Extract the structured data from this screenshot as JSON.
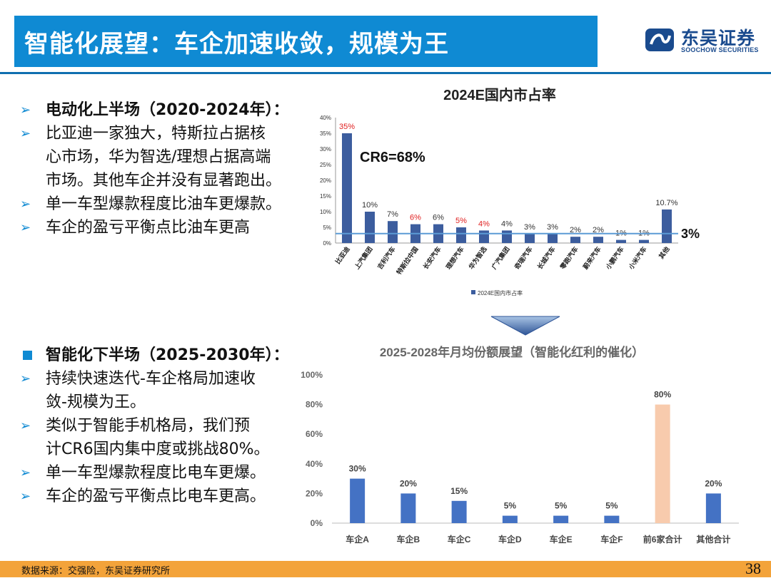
{
  "header": {
    "title": "智能化展望：车企加速收敛，规模为王",
    "logo_cn": "东吴证券",
    "logo_en": "SOOCHOW SECURITIES"
  },
  "upper_bullets": {
    "heading": "电动化上半场（2020-2024年）：",
    "items": [
      [
        "比亚迪一家独大，特斯拉占据核",
        "心市场，华为智选/理想占据高端",
        "市场。其他车企并没有显著跑出。"
      ],
      [
        "单一车型爆款程度比油车更爆款。"
      ],
      [
        "车企的盈亏平衡点比油车更高"
      ]
    ]
  },
  "lower_bullets": {
    "heading": "智能化下半场（2025-2030年）：",
    "items": [
      [
        "持续快速迭代-车企格局加速收",
        "敛-规模为王。"
      ],
      [
        "类似于智能手机格局，我们预",
        "计CR6国内集中度或挑战80%。"
      ],
      [
        "单一车型爆款程度比电车更爆。"
      ],
      [
        "车企的盈亏平衡点比电车更高。"
      ]
    ]
  },
  "chart_data": [
    {
      "type": "bar",
      "title": "2024E国内市占率",
      "categories": [
        "比亚迪",
        "上汽集团",
        "吉利汽车",
        "特斯拉中国",
        "长安汽车",
        "理想汽车",
        "华为智选",
        "广汽集团",
        "奇瑞汽车",
        "长城汽车",
        "零跑汽车",
        "蔚来汽车",
        "小鹏汽车",
        "小米汽车",
        "其他"
      ],
      "values": [
        35,
        10,
        7,
        6,
        6,
        5,
        4,
        4,
        3,
        3,
        2,
        2,
        1,
        1,
        10.7
      ],
      "data_labels": [
        "35%",
        "10%",
        "7%",
        "6%",
        "6%",
        "5%",
        "4%",
        "4%",
        "3%",
        "3%",
        "2%",
        "2%",
        "1%",
        "1%",
        "10.7%"
      ],
      "highlight_labels": [
        0,
        3,
        5,
        6
      ],
      "yticks": [
        "0%",
        "5%",
        "10%",
        "15%",
        "20%",
        "25%",
        "30%",
        "35%",
        "40%"
      ],
      "ylim": [
        0,
        40
      ],
      "legend": "2024E国内市占率",
      "annotation": "CR6=68%",
      "reference_line": {
        "value": 3,
        "label": "3%"
      },
      "color": "#3c5d9e",
      "label_color_highlight": "#e02020"
    },
    {
      "type": "bar",
      "title": "2025-2028年月均份额展望（智能化红利的催化）",
      "categories": [
        "车企A",
        "车企B",
        "车企C",
        "车企D",
        "车企E",
        "车企F",
        "前6家合计",
        "其他合计"
      ],
      "values": [
        30,
        20,
        15,
        5,
        5,
        5,
        80,
        20
      ],
      "data_labels": [
        "30%",
        "20%",
        "15%",
        "5%",
        "5%",
        "5%",
        "80%",
        "20%"
      ],
      "yticks": [
        "0%",
        "20%",
        "40%",
        "60%",
        "80%",
        "100%"
      ],
      "ylim": [
        0,
        100
      ],
      "color": "#4472c4",
      "highlight_color": "#f8cbad",
      "highlight_index": 6
    }
  ],
  "footer": {
    "source": "数据来源：交强险，东吴证券研究所",
    "page": "38"
  }
}
